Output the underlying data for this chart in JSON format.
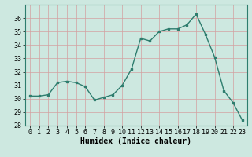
{
  "x": [
    0,
    1,
    2,
    3,
    4,
    5,
    6,
    7,
    8,
    9,
    10,
    11,
    12,
    13,
    14,
    15,
    16,
    17,
    18,
    19,
    20,
    21,
    22,
    23
  ],
  "y": [
    30.2,
    30.2,
    30.3,
    31.2,
    31.3,
    31.2,
    30.9,
    29.9,
    30.1,
    30.3,
    31.0,
    32.2,
    34.5,
    34.3,
    35.0,
    35.2,
    35.2,
    35.5,
    36.3,
    34.8,
    33.1,
    30.6,
    29.7,
    28.4
  ],
  "xlabel": "Humidex (Indice chaleur)",
  "ylim": [
    28,
    37
  ],
  "xlim": [
    -0.5,
    23.5
  ],
  "yticks": [
    28,
    29,
    30,
    31,
    32,
    33,
    34,
    35,
    36
  ],
  "xticks": [
    0,
    1,
    2,
    3,
    4,
    5,
    6,
    7,
    8,
    9,
    10,
    11,
    12,
    13,
    14,
    15,
    16,
    17,
    18,
    19,
    20,
    21,
    22,
    23
  ],
  "line_color": "#2e7d6e",
  "marker": "s",
  "marker_size": 2.0,
  "bg_color": "#cde8e0",
  "grid_color": "#b8d8d0",
  "line_width": 1.0,
  "tick_fontsize": 6.0,
  "xlabel_fontsize": 7.0
}
